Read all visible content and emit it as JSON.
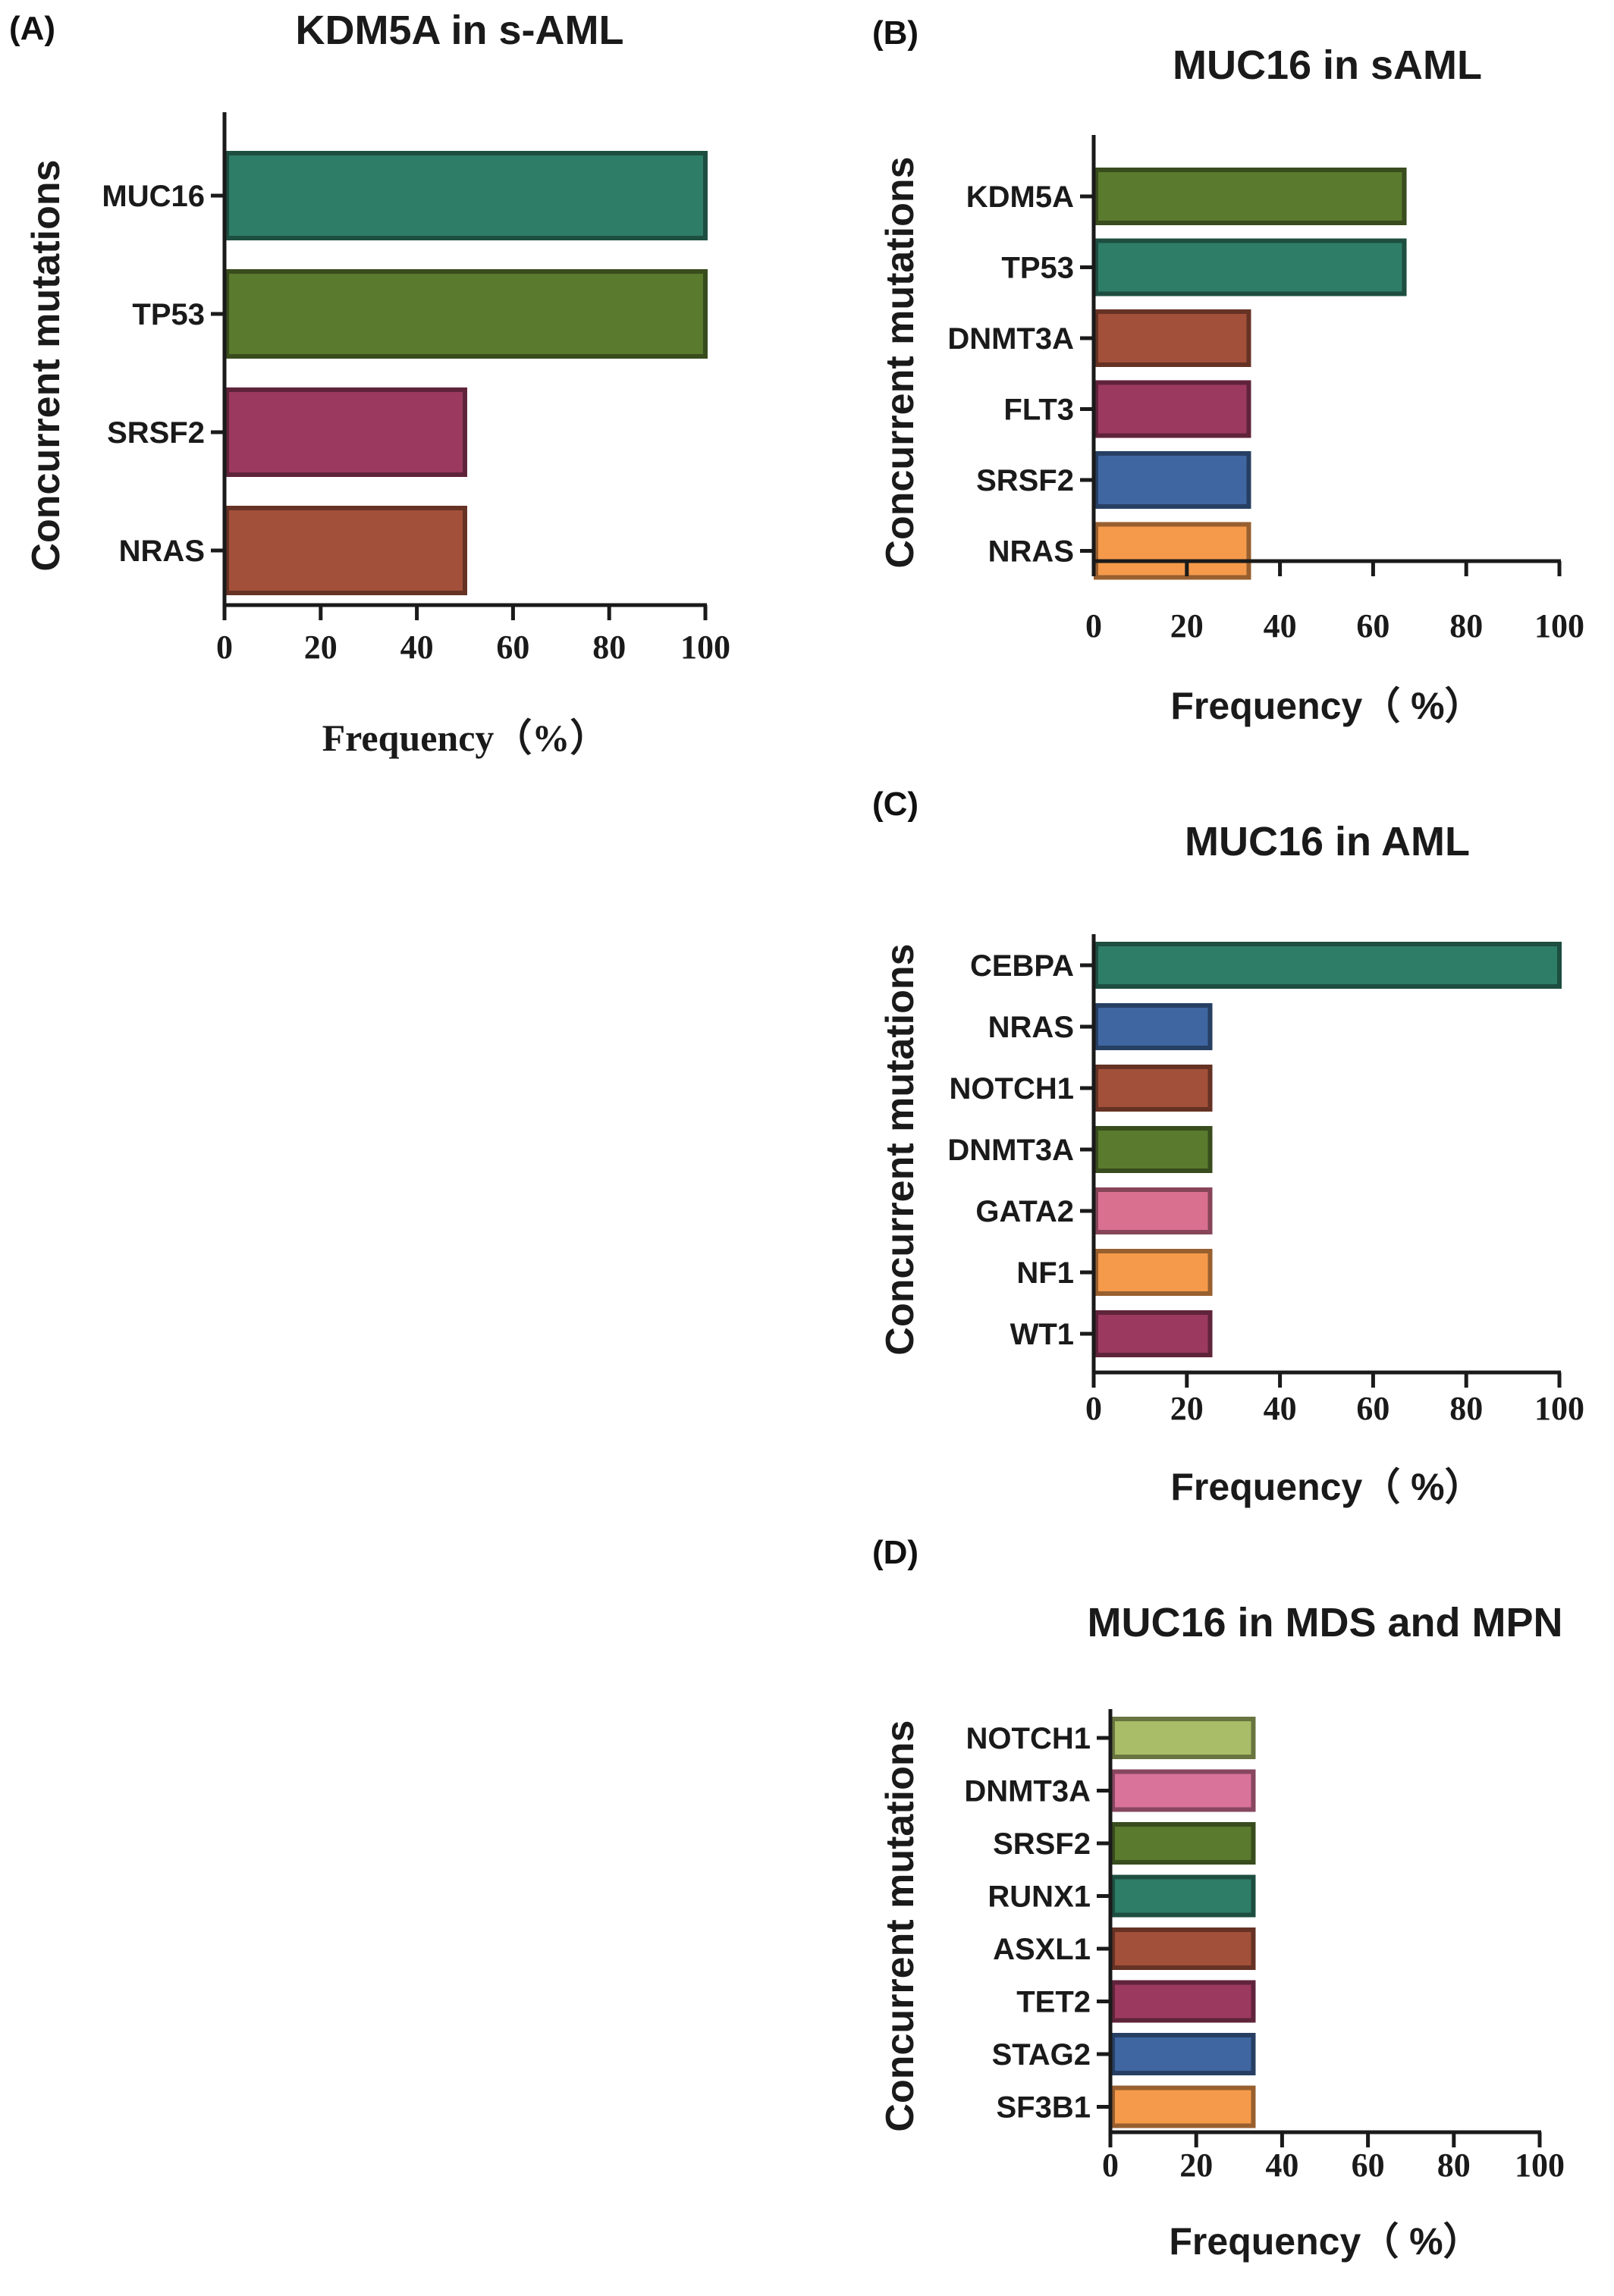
{
  "chart_data": [
    {
      "panel_label": "(A)",
      "type": "bar",
      "orientation": "horizontal",
      "title": "KDM5A in s-AML",
      "ylabel": "Concurrent mutations",
      "xlabel": "Frequency（%）",
      "xlim": [
        0,
        100
      ],
      "xticks": [
        "0",
        "20",
        "40",
        "60",
        "80",
        "100"
      ],
      "categories": [
        "MUC16",
        "TP53",
        "SRSF2",
        "NRAS"
      ],
      "values": [
        100,
        100,
        50,
        50
      ],
      "colors": [
        "#2e7d67",
        "#5a7a2e",
        "#9b3a5e",
        "#a3503a"
      ]
    },
    {
      "panel_label": "(B)",
      "type": "bar",
      "orientation": "horizontal",
      "title": "MUC16 in sAML",
      "ylabel": "Concurrent mutations",
      "xlabel": "Frequency（ %）",
      "xlim": [
        0,
        100
      ],
      "xticks": [
        "0",
        "20",
        "40",
        "60",
        "80",
        "100"
      ],
      "categories": [
        "KDM5A",
        "TP53",
        "DNMT3A",
        "FLT3",
        "SRSF2",
        "NRAS"
      ],
      "values": [
        66.7,
        66.7,
        33.3,
        33.3,
        33.3,
        33.3
      ],
      "colors": [
        "#5a7a2e",
        "#2e7d67",
        "#a3503a",
        "#9b3a5e",
        "#3f66a0",
        "#f59a4b"
      ]
    },
    {
      "panel_label": "(C)",
      "type": "bar",
      "orientation": "horizontal",
      "title": "MUC16 in AML",
      "ylabel": "Concurrent mutations",
      "xlabel": "Frequency（ %）",
      "xlim": [
        0,
        100
      ],
      "xticks": [
        "0",
        "20",
        "40",
        "60",
        "80",
        "100"
      ],
      "categories": [
        "CEBPA",
        "NRAS",
        "NOTCH1",
        "DNMT3A",
        "GATA2",
        "NF1",
        "WT1"
      ],
      "values": [
        100,
        25,
        25,
        25,
        25,
        25,
        25
      ],
      "colors": [
        "#2e7d67",
        "#3f66a0",
        "#a3503a",
        "#5a7a2e",
        "#d9708f",
        "#f59a4b",
        "#9b3a5e"
      ]
    },
    {
      "panel_label": "(D)",
      "type": "bar",
      "orientation": "horizontal",
      "title": "MUC16 in MDS and MPN",
      "ylabel": "Concurrent mutations",
      "xlabel": "Frequency（ %）",
      "xlim": [
        0,
        100
      ],
      "xticks": [
        "0",
        "20",
        "40",
        "60",
        "80",
        "100"
      ],
      "categories": [
        "NOTCH1",
        "DNMT3A",
        "SRSF2",
        "RUNX1",
        "ASXL1",
        "TET2",
        "STAG2",
        "SF3B1"
      ],
      "values": [
        33.3,
        33.3,
        33.3,
        33.3,
        33.3,
        33.3,
        33.3,
        33.3
      ],
      "colors": [
        "#a9bd68",
        "#d9739a",
        "#5a7a2e",
        "#2e7d67",
        "#a3503a",
        "#9b3a5e",
        "#3f66a0",
        "#f59a4b"
      ]
    }
  ]
}
